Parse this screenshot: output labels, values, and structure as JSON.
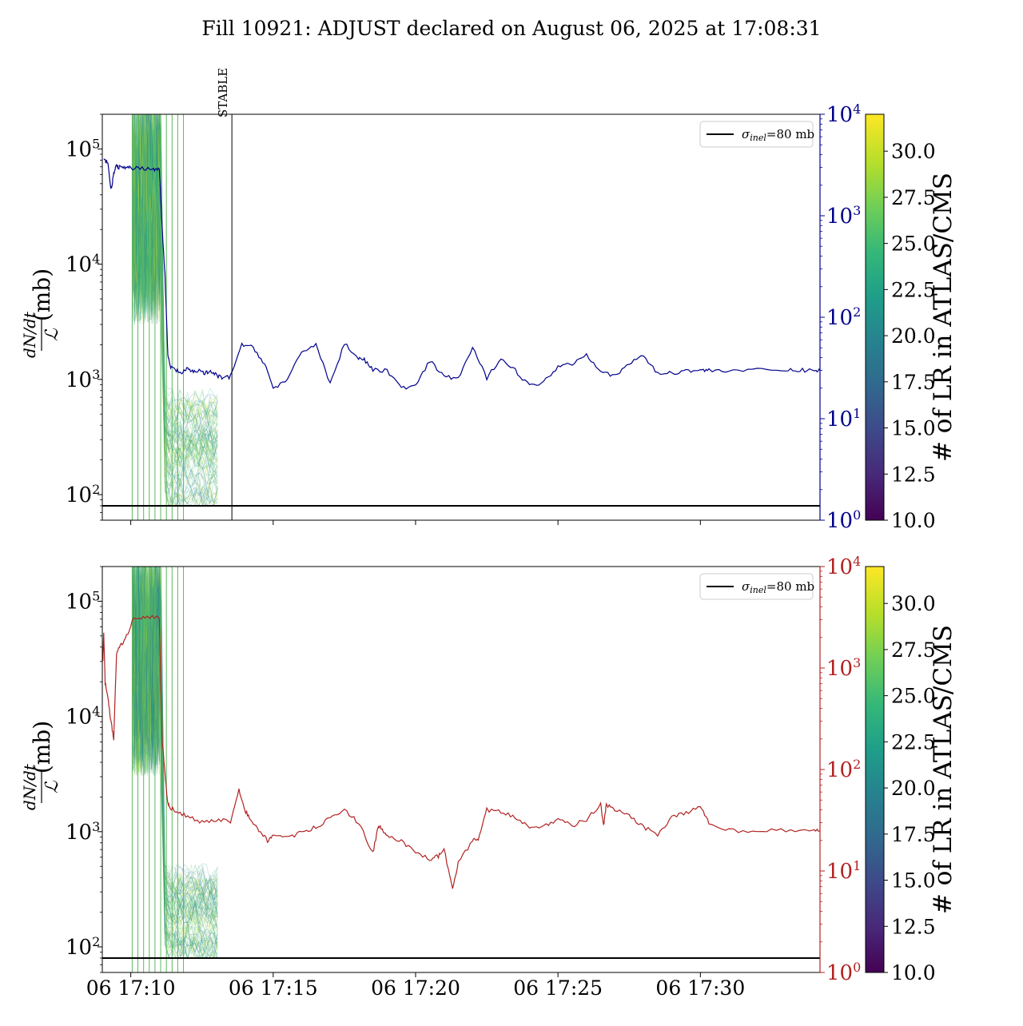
{
  "title": "Fill 10921: ADJUST declared on August 06, 2025 at 17:08:31",
  "colors": {
    "primary_line": "#00008b",
    "secondary_line": "#b22222",
    "reference_line": "#000000",
    "colormap": [
      "#440154",
      "#482878",
      "#3e4989",
      "#31688e",
      "#26828e",
      "#1f9e89",
      "#35b779",
      "#6ece58",
      "#b5de2b",
      "#fde725"
    ]
  },
  "chart_data": [
    {
      "type": "line",
      "panel": "top",
      "ylabel_fraction": "dN/dt / ℒ",
      "ylabel_unit": "(mb)",
      "yscale": "log",
      "ylim": [
        60,
        200000
      ],
      "yticks": [
        {
          "value": 100,
          "base": "10",
          "exp": "2"
        },
        {
          "value": 1000,
          "base": "10",
          "exp": "3"
        },
        {
          "value": 10000,
          "base": "10",
          "exp": "4"
        },
        {
          "value": 100000,
          "base": "10",
          "exp": "5"
        }
      ],
      "y2scale": "log",
      "y2lim": [
        1,
        10000
      ],
      "y2color": "#00008b",
      "y2ticks": [
        {
          "value": 1,
          "base": "10",
          "exp": "0"
        },
        {
          "value": 10,
          "base": "10",
          "exp": "1"
        },
        {
          "value": 100,
          "base": "10",
          "exp": "2"
        },
        {
          "value": 1000,
          "base": "10",
          "exp": "3"
        },
        {
          "value": 10000,
          "base": "10",
          "exp": "4"
        }
      ],
      "xlim_minutes": [
        9.0,
        34.2
      ],
      "xtick_minutes": [
        10,
        15,
        20,
        25,
        30
      ],
      "xtick_labels": [],
      "reference_line": {
        "value": 80,
        "legend": {
          "symbol": "σ",
          "sub": "inel",
          "text": "=80 mb"
        },
        "legend_position": "top-right"
      },
      "vline": {
        "x_minute": 13.55,
        "label": "STABLE"
      },
      "spaghetti": {
        "x_start": 10.05,
        "x_mid": 11.05,
        "x_drop": 11.2,
        "x_end": 13.05,
        "high_value": 200000,
        "low_range": [
          80,
          700
        ]
      },
      "vertical_streaks_minutes": [
        10.05,
        10.25,
        10.45,
        10.65,
        10.85,
        11.05,
        11.25,
        11.45,
        11.65,
        11.85
      ],
      "series": [
        {
          "axis": "right",
          "x_minutes": [
            9.05,
            9.2,
            9.3,
            9.35,
            9.4,
            9.5,
            9.6,
            9.8,
            10.0,
            10.4,
            10.8,
            11.0,
            11.1,
            11.2,
            11.3,
            11.4,
            11.6,
            11.8,
            12.0,
            12.2,
            12.4,
            12.6,
            12.8,
            13.0,
            13.2,
            13.5,
            13.9,
            14.3,
            14.7,
            15.0,
            15.5,
            16.0,
            16.5,
            17.0,
            17.5,
            18.0,
            18.2,
            18.5,
            19.0,
            19.5,
            20.0,
            20.5,
            21.0,
            21.5,
            22.0,
            22.5,
            23.0,
            23.5,
            24.0,
            24.5,
            25.0,
            25.5,
            26.0,
            26.5,
            27.0,
            27.5,
            28.0,
            28.5,
            29.0,
            29.5,
            30.0,
            30.3,
            31.0,
            32.0,
            33.0,
            33.5,
            34.0,
            34.2
          ],
          "values": [
            3500,
            3400,
            1800,
            2100,
            2600,
            3100,
            3000,
            2950,
            2950,
            2950,
            2900,
            2850,
            800,
            260,
            42,
            32,
            30,
            28,
            31,
            29,
            30,
            28,
            29,
            27,
            25,
            26,
            54,
            50,
            35,
            20,
            24,
            45,
            55,
            22,
            55,
            40,
            38,
            30,
            30,
            20,
            21,
            37,
            26,
            25,
            50,
            25,
            40,
            30,
            21,
            23,
            33,
            35,
            43,
            30,
            26,
            35,
            42,
            28,
            28,
            30,
            30,
            30,
            30,
            30,
            30,
            30,
            30,
            30
          ]
        }
      ],
      "colorbar": {
        "label": "# of LR in ATLAS/CMS",
        "min": 10.0,
        "max": 32.0,
        "ticks": [
          "10.0",
          "12.5",
          "15.0",
          "17.5",
          "20.0",
          "22.5",
          "25.0",
          "27.5",
          "30.0"
        ]
      }
    },
    {
      "type": "line",
      "panel": "bottom",
      "ylabel_fraction": "dN/dt / ℒ",
      "ylabel_unit": "(mb)",
      "yscale": "log",
      "ylim": [
        60,
        200000
      ],
      "yticks": [
        {
          "value": 100,
          "base": "10",
          "exp": "2"
        },
        {
          "value": 1000,
          "base": "10",
          "exp": "3"
        },
        {
          "value": 10000,
          "base": "10",
          "exp": "4"
        },
        {
          "value": 100000,
          "base": "10",
          "exp": "5"
        }
      ],
      "y2scale": "log",
      "y2lim": [
        1,
        10000
      ],
      "y2color": "#b22222",
      "y2ticks": [
        {
          "value": 1,
          "base": "10",
          "exp": "0"
        },
        {
          "value": 10,
          "base": "10",
          "exp": "1"
        },
        {
          "value": 100,
          "base": "10",
          "exp": "2"
        },
        {
          "value": 1000,
          "base": "10",
          "exp": "3"
        },
        {
          "value": 10000,
          "base": "10",
          "exp": "4"
        }
      ],
      "xlim_minutes": [
        9.0,
        34.2
      ],
      "xtick_minutes": [
        10,
        15,
        20,
        25,
        30
      ],
      "xtick_labels": [
        "06 17:10",
        "06 17:15",
        "06 17:20",
        "06 17:25",
        "06 17:30"
      ],
      "reference_line": {
        "value": 80,
        "legend": {
          "symbol": "σ",
          "sub": "inel",
          "text": "=80 mb"
        },
        "legend_position": "top-right"
      },
      "spaghetti": {
        "x_start": 10.05,
        "x_mid": 11.05,
        "x_drop": 11.2,
        "x_end": 13.05,
        "high_value": 200000,
        "low_range": [
          80,
          400
        ]
      },
      "vertical_streaks_minutes": [
        10.05,
        10.25,
        10.45,
        10.65,
        10.85,
        11.05,
        11.25,
        11.45,
        11.65,
        11.85
      ],
      "series": [
        {
          "axis": "right",
          "x_minutes": [
            9.02,
            9.05,
            9.1,
            9.2,
            9.3,
            9.4,
            9.5,
            9.6,
            9.8,
            10.1,
            10.5,
            11.0,
            11.1,
            11.2,
            11.3,
            11.4,
            11.6,
            12.0,
            12.5,
            13.0,
            13.5,
            13.8,
            14.0,
            14.2,
            14.5,
            14.8,
            15.0,
            15.5,
            16.0,
            16.5,
            17.0,
            17.5,
            18.0,
            18.5,
            18.7,
            18.8,
            19.0,
            19.5,
            20.0,
            20.5,
            20.8,
            21.0,
            21.3,
            21.5,
            22.0,
            22.2,
            22.5,
            23.0,
            23.5,
            24.0,
            24.5,
            25.0,
            25.5,
            26.0,
            26.5,
            26.6,
            26.7,
            27.0,
            27.5,
            28.0,
            28.5,
            29.0,
            29.5,
            30.0,
            30.3,
            31.0,
            32.0,
            33.0,
            34.0,
            34.2
          ],
          "values": [
            1200,
            2200,
            700,
            500,
            300,
            200,
            1400,
            1600,
            1900,
            3100,
            3200,
            3100,
            200,
            90,
            45,
            42,
            38,
            35,
            30,
            32,
            31,
            62,
            40,
            32,
            25,
            20,
            22,
            21,
            24,
            27,
            33,
            40,
            30,
            15,
            28,
            26,
            22,
            20,
            15,
            13,
            14,
            16,
            7,
            12,
            20,
            20,
            40,
            38,
            34,
            27,
            28,
            32,
            28,
            32,
            45,
            28,
            45,
            40,
            35,
            27,
            23,
            34,
            37,
            44,
            30,
            25,
            25,
            25,
            25,
            25
          ]
        }
      ],
      "colorbar": {
        "label": "# of LR in ATLAS/CMS",
        "min": 10.0,
        "max": 32.0,
        "ticks": [
          "10.0",
          "12.5",
          "15.0",
          "17.5",
          "20.0",
          "22.5",
          "25.0",
          "27.5",
          "30.0"
        ]
      }
    }
  ]
}
